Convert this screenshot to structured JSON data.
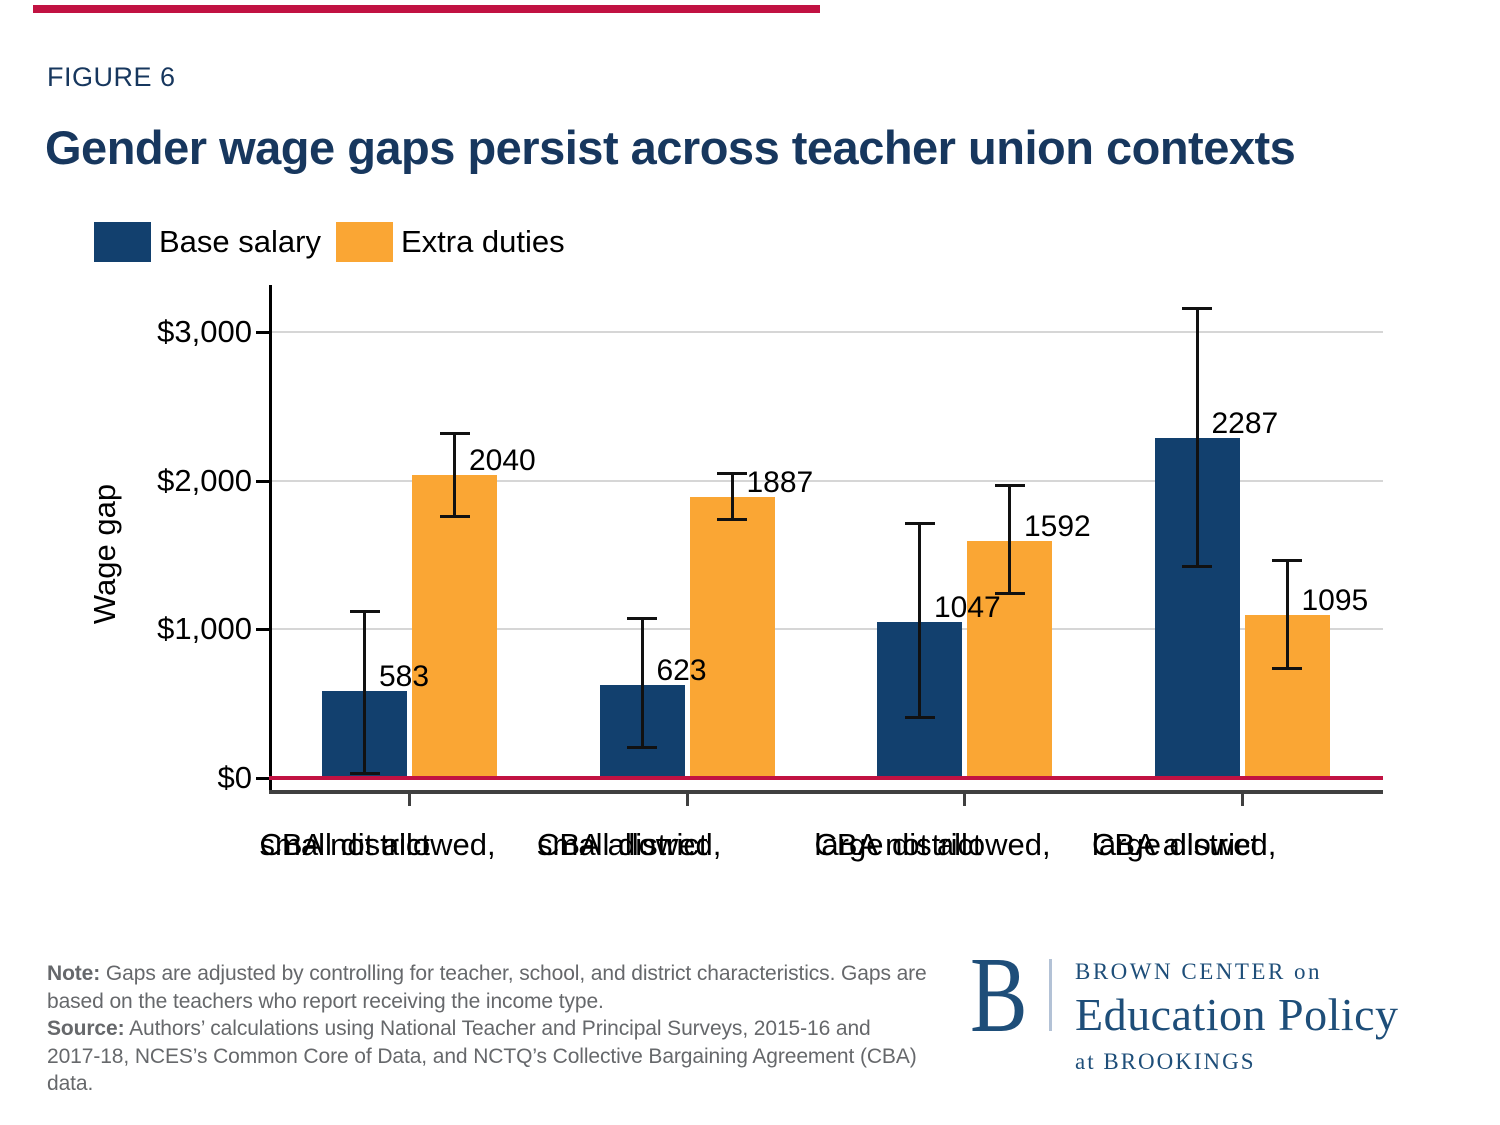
{
  "theme": {
    "navy_text": "#17375e",
    "red_accent": "#c11242",
    "logo_blue": "#1e4e79",
    "note_gray": "#66686b",
    "grid_gray": "#d6d6d6",
    "axis_gray": "#404040"
  },
  "header": {
    "figure_label": "FIGURE 6",
    "title": "Gender wage gaps persist across teacher union contexts"
  },
  "chart_data": {
    "type": "bar",
    "title": "Gender wage gaps persist across teacher union contexts",
    "xlabel": "",
    "ylabel": "Wage gap",
    "ylim": [
      0,
      3400
    ],
    "grid": true,
    "legend_position": "top-left",
    "zero_line_color": "#c11242",
    "yticks": [
      {
        "value": 0,
        "label": "$0"
      },
      {
        "value": 1000,
        "label": "$1,000"
      },
      {
        "value": 2000,
        "label": "$2,000"
      },
      {
        "value": 3000,
        "label": "$3,000"
      }
    ],
    "categories": [
      {
        "line1": "CBA not allowed,",
        "line2": "small district"
      },
      {
        "line1": "CBA allowed,",
        "line2": "small district"
      },
      {
        "line1": "CBA not allowed,",
        "line2": "large district"
      },
      {
        "line1": "CBA allowed,",
        "line2": "large district"
      }
    ],
    "series": [
      {
        "name": "Base salary",
        "color": "#12406e",
        "values": [
          583,
          623,
          1047,
          2287
        ],
        "ci_low": [
          30,
          205,
          405,
          1425
        ],
        "ci_high": [
          1120,
          1070,
          1710,
          3155
        ]
      },
      {
        "name": "Extra duties",
        "color": "#faa634",
        "values": [
          2040,
          1887,
          1592,
          1095
        ],
        "ci_low": [
          1760,
          1740,
          1240,
          735
        ],
        "ci_high": [
          2320,
          2050,
          1965,
          1465
        ]
      }
    ]
  },
  "note": {
    "label": "Note:",
    "text": "Gaps are adjusted by controlling for teacher, school, and district characteristics. Gaps are based on the teachers who report receiving the income type.",
    "line1": "Gaps are adjusted by controlling for teacher, school, and district characteristics. Gaps are",
    "line2": "based on the teachers who report receiving the income type."
  },
  "source": {
    "label": "Source:",
    "text": "Authors’ calculations using National Teacher and Principal Surveys, 2015-16 and 2017-18, NCES’s Common Core of Data, and NCTQ’s Collective Bargaining Agreement (CBA) data.",
    "line1": "Authors’ calculations using National Teacher and Principal Surveys, 2015-16 and",
    "line2": "2017-18, NCES’s Common Core of Data, and NCTQ’s Collective Bargaining Agreement (CBA)",
    "line3": "data."
  },
  "logo": {
    "b": "B",
    "line1": "BROWN CENTER on",
    "line2": "Education Policy",
    "line3": "at BROOKINGS"
  }
}
